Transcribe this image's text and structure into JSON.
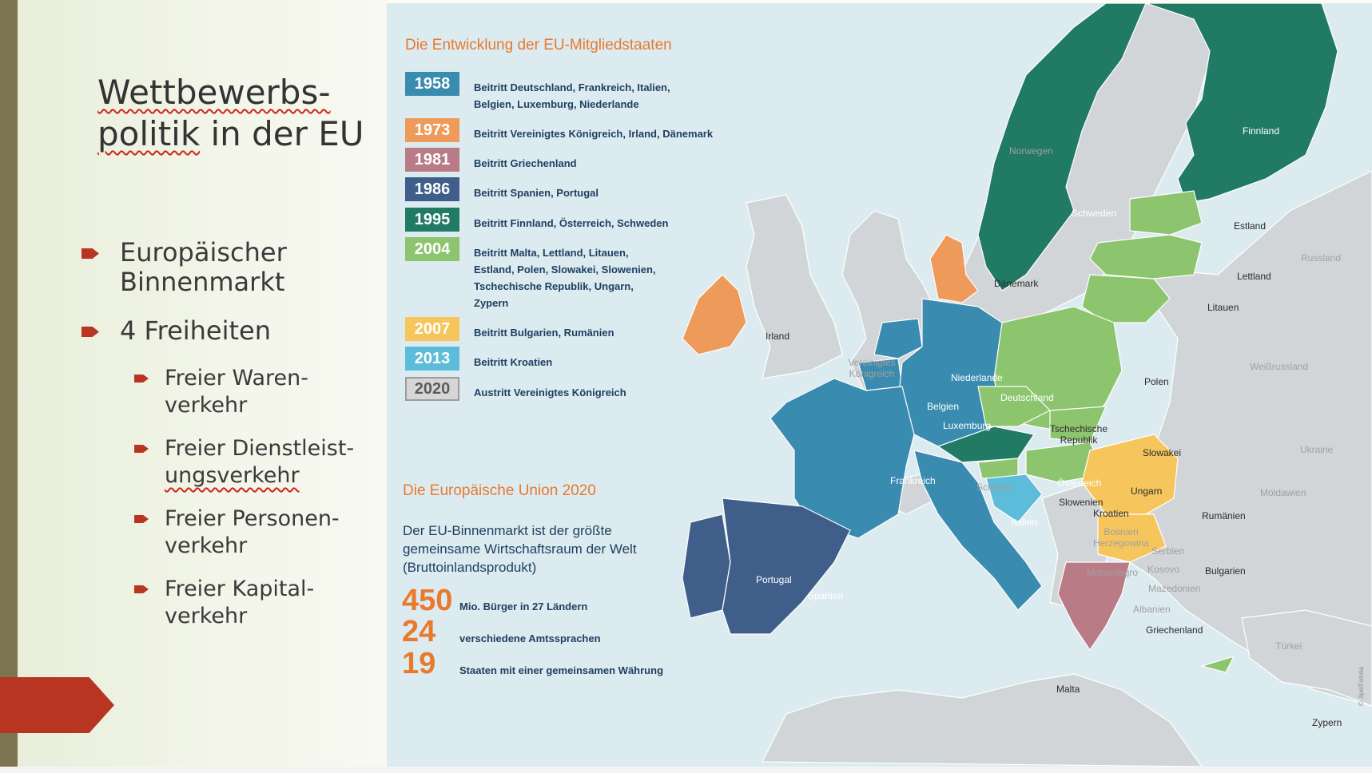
{
  "slide": {
    "title_line1": "Wettbewerbs-",
    "title_line2a": "politik",
    "title_line2b": " in der EU",
    "bullets": [
      {
        "level": 1,
        "lines": [
          "Europäischer",
          "Binnenmarkt"
        ]
      },
      {
        "level": 1,
        "lines": [
          "4 Freiheiten"
        ]
      },
      {
        "level": 2,
        "lines": [
          "Freier Waren-",
          "verkehr"
        ]
      },
      {
        "level": 2,
        "lines": [
          "Freier Dienstleist-",
          "ungsverkehr"
        ]
      },
      {
        "level": 2,
        "lines": [
          "Freier Personen-",
          "verkehr"
        ]
      },
      {
        "level": 2,
        "lines": [
          "Freier Kapital-",
          "verkehr"
        ]
      }
    ],
    "colors": {
      "accent": "#b83521",
      "sidebar": "#7d7450",
      "orange": "#e8792d",
      "navy": "#1f3f60"
    }
  },
  "infographic": {
    "timeline_heading": "Die Entwicklung der EU-Mitgliedstaaten",
    "timeline": [
      {
        "year": "1958",
        "color": "#3a8bb0",
        "lines": [
          "Beitritt Deutschland, Frankreich, Italien,",
          "Belgien, Luxemburg, Niederlande"
        ]
      },
      {
        "year": "1973",
        "color": "#ee9a5a",
        "lines": [
          "Beitritt Vereinigtes Königreich, Irland, Dänemark"
        ]
      },
      {
        "year": "1981",
        "color": "#b97b86",
        "lines": [
          "Beitritt Griechenland"
        ]
      },
      {
        "year": "1986",
        "color": "#3f5f8a",
        "lines": [
          "Beitritt Spanien, Portugal"
        ]
      },
      {
        "year": "1995",
        "color": "#217a63",
        "lines": [
          "Beitritt Finnland, Österreich, Schweden"
        ]
      },
      {
        "year": "2004",
        "color": "#8dc46e",
        "lines": [
          "Beitritt Malta, Lettland, Litauen,",
          "Estland, Polen, Slowakei, Slowenien,",
          "Tschechische Republik, Ungarn,",
          "Zypern"
        ]
      },
      {
        "year": "2007",
        "color": "#f6c65c",
        "lines": [
          "Beitritt Bulgarien, Rumänien"
        ]
      },
      {
        "year": "2013",
        "color": "#5cbcd9",
        "lines": [
          "Beitritt Kroatien"
        ]
      },
      {
        "year": "2020",
        "color": "#d6d6d6",
        "lines": [
          "Austritt Vereinigtes Königreich"
        ]
      }
    ],
    "eu_heading": "Die Europäische Union 2020",
    "eu_description": "Der EU-Binnenmarkt ist der größte gemeinsame Wirtschaftsraum der Welt (Bruttoinlandsprodukt)",
    "stats": [
      {
        "number": "450",
        "text": "Mio. Bürger in 27 Ländern"
      },
      {
        "number": "24",
        "text": "verschiedene Amtssprachen"
      },
      {
        "number": "19",
        "text": "Staaten mit einer gemeinsamen Währung"
      }
    ],
    "country_labels": {
      "finnland": "Finnland",
      "norwegen": "Norwegen",
      "schweden": "Schweden",
      "estland": "Estland",
      "russland": "Russland",
      "lettland": "Lettland",
      "daenemark": "Dänemark",
      "litauen": "Litauen",
      "irland": "Irland",
      "vk": "Vereinigtes Königreich",
      "weissrussland": "Weißrussland",
      "niederlande": "Niederlande",
      "polen": "Polen",
      "deutschland": "Deutschland",
      "belgien": "Belgien",
      "luxemburg": "Luxemburg",
      "tschechien": "Tschechische Republik",
      "ukraine": "Ukraine",
      "slowakei": "Slowakei",
      "frankreich": "Frankreich",
      "schweiz": "Schweiz",
      "oesterreich": "Österreich",
      "moldawien": "Moldawien",
      "ungarn": "Ungarn",
      "slowenien": "Slowenien",
      "kroatien": "Kroatien",
      "rumaenien": "Rumänien",
      "italien": "Italien",
      "bosnien": "Bosnien Herzegowina",
      "serbien": "Serbien",
      "kosovo": "Kosovo",
      "montenegro": "Montenegro",
      "bulgarien": "Bulgarien",
      "portugal": "Portugal",
      "mazedonien": "Mazedonien",
      "spanien": "Spanien",
      "albanien": "Albanien",
      "griechenland": "Griechenland",
      "tuerkei": "Türkei",
      "malta": "Malta",
      "zypern": "Zypern"
    },
    "copyright": "© Jipé/Fotolia"
  }
}
